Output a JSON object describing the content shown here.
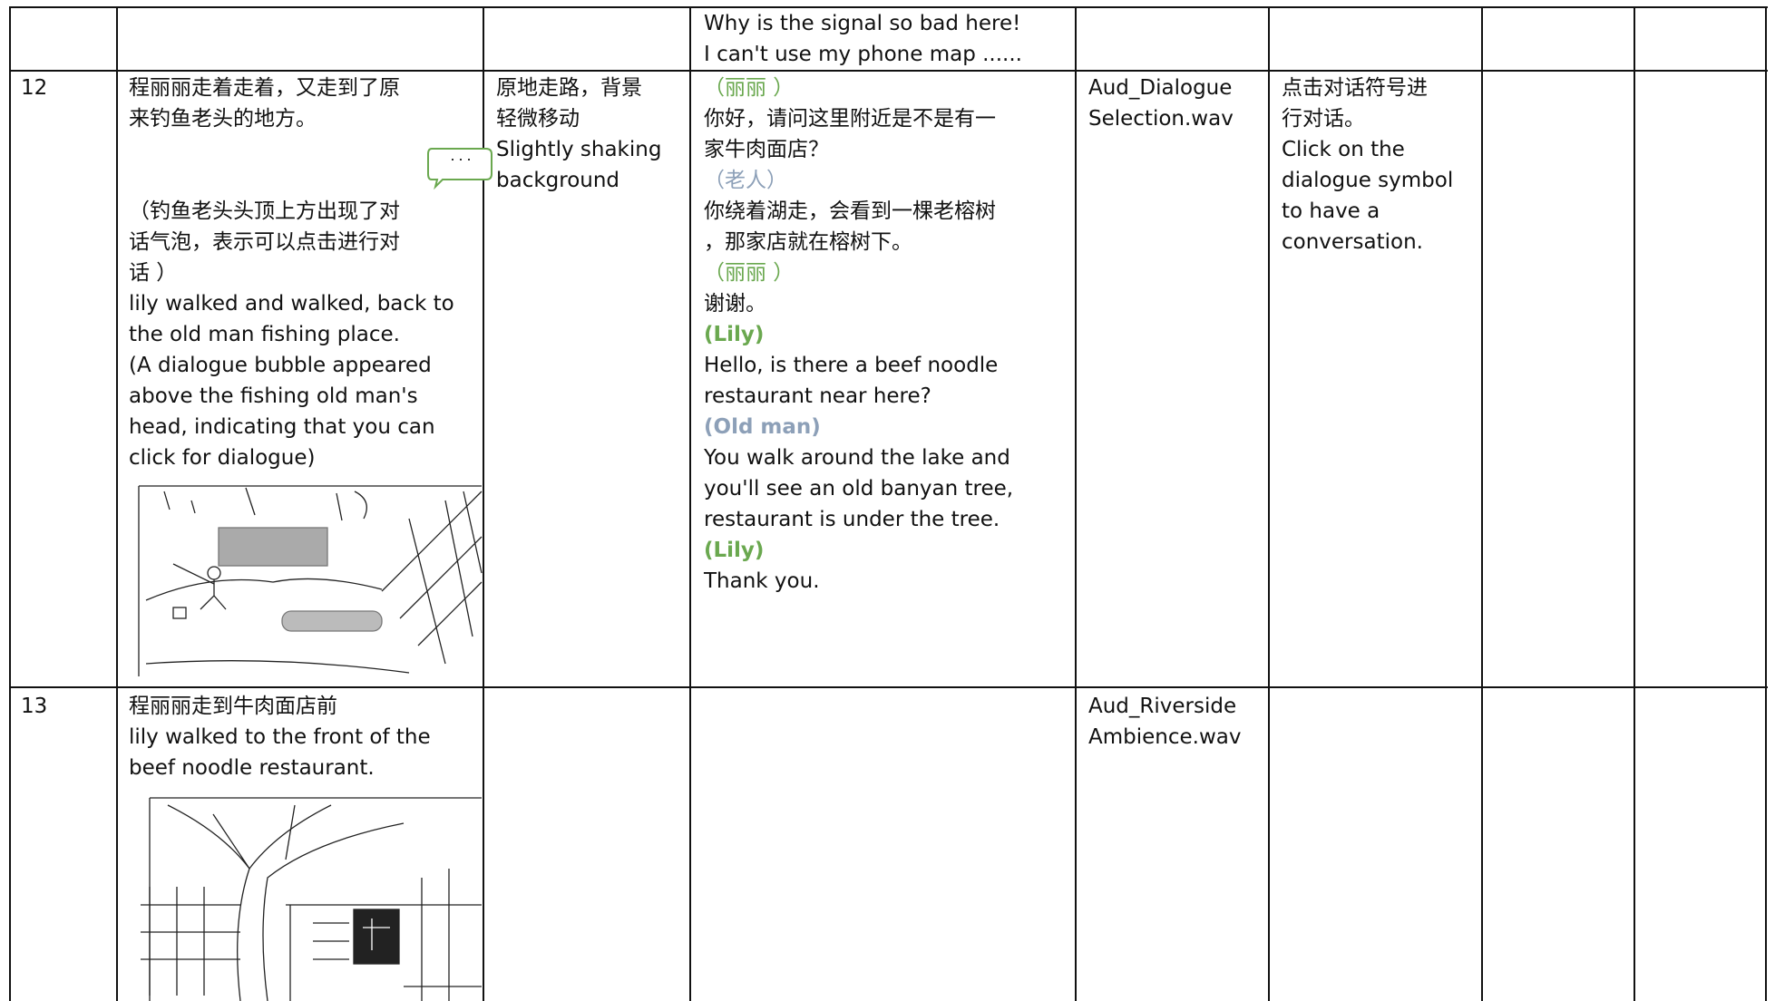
{
  "table": {
    "rows": [
      {
        "dialogue": [
          {
            "text": "Why is the signal so bad here!"
          },
          {
            "text": "I can't use my phone map ......"
          }
        ]
      },
      {
        "number": "12",
        "description": [
          [
            "程丽丽走着走着，又走到了原",
            "来钓鱼老头的地方。"
          ],
          [
            "（钓鱼老头头顶上方出现了对",
            "话气泡，表示可以点击进行对",
            "话 ）",
            "lily walked and walked, back to",
            "the old man fishing place.",
            "(A dialogue bubble appeared",
            "above the fishing old man's",
            "head, indicating that you can",
            "click for dialogue)"
          ]
        ],
        "motion": [
          "原地走路，背景",
          "轻微移动",
          "Slightly shaking",
          "background"
        ],
        "dialogue": [
          {
            "text": "（丽丽 ）",
            "color": "#6aa84f"
          },
          {
            "text": "你好，请问这里附近是不是有一"
          },
          {
            "text": "家牛肉面店？"
          },
          {
            "text": "（老人）",
            "color": "#8da0b8"
          },
          {
            "text": "你绕着湖走，会看到一棵老榕树"
          },
          {
            "text": "，那家店就在榕树下。"
          },
          {
            "text": "（丽丽 ）",
            "color": "#6aa84f"
          },
          {
            "text": "谢谢。"
          },
          {
            "text": "(Lily)",
            "color": "#6aa84f",
            "bold": true
          },
          {
            "text": "Hello, is there a beef noodle"
          },
          {
            "text": "restaurant near here?"
          },
          {
            "text": "(Old man)",
            "color": "#8da0b8",
            "bold": true
          },
          {
            "text": "You walk around the lake and"
          },
          {
            "text": "you'll see an old banyan tree,"
          },
          {
            "text": "restaurant is under the tree."
          },
          {
            "text": "(Lily)",
            "color": "#6aa84f",
            "bold": true
          },
          {
            "text": "Thank you."
          }
        ],
        "audio": [
          "Aud_Dialogue",
          "Selection.wav"
        ],
        "interaction": [
          "点击对话符号进",
          "行对话。",
          "Click on the",
          "dialogue symbol",
          "to have a",
          "conversation."
        ]
      },
      {
        "number": "13",
        "description": [
          [
            "程丽丽走到牛肉面店前",
            "lily walked to the front of the",
            "beef noodle restaurant."
          ]
        ],
        "audio": [
          "Aud_Riverside",
          "Ambience.wav"
        ]
      }
    ]
  }
}
